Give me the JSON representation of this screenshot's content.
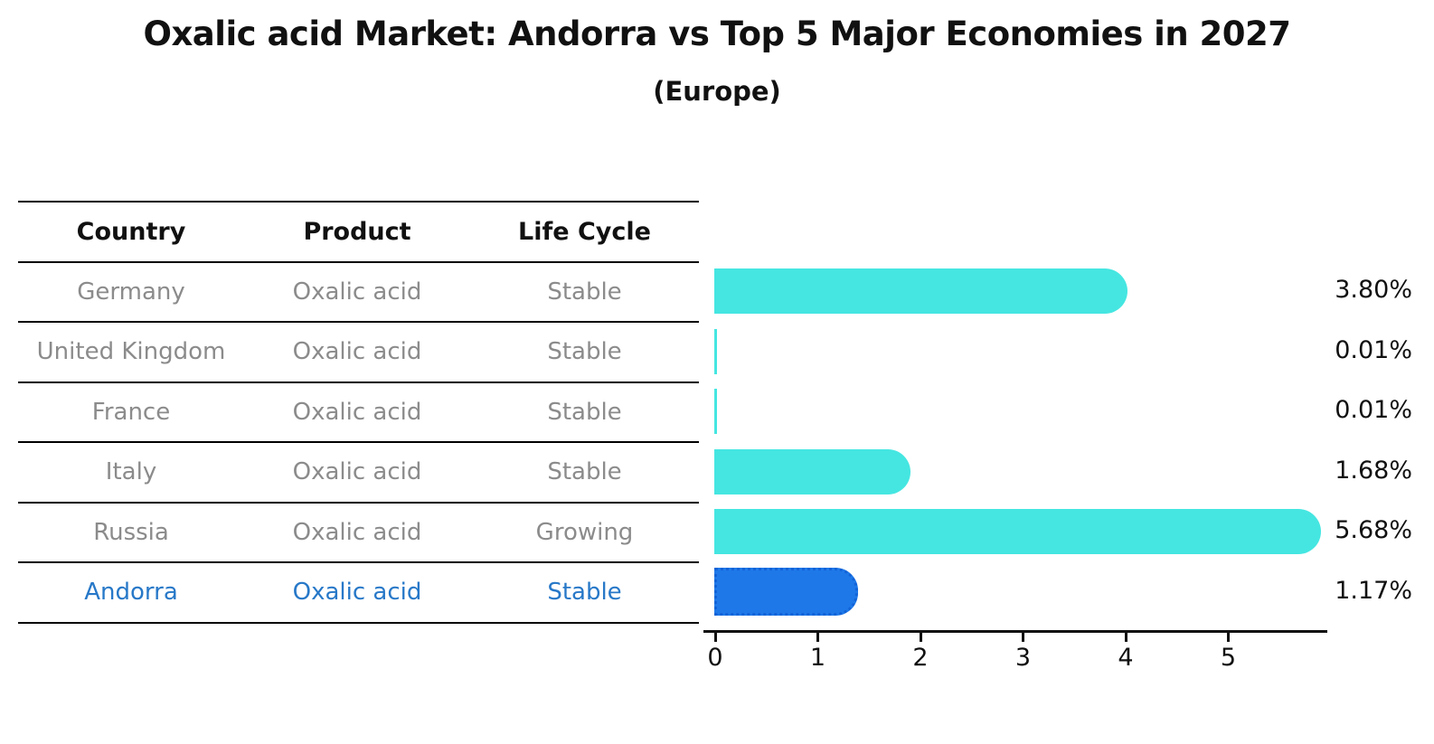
{
  "title": "Oxalic acid Market: Andorra vs Top 5 Major Economies in 2027",
  "subtitle": "(Europe)",
  "table": {
    "headers": [
      "Country",
      "Product",
      "Life Cycle"
    ],
    "rows": [
      {
        "country": "Germany",
        "product": "Oxalic acid",
        "life_cycle": "Stable",
        "highlight": false
      },
      {
        "country": "United Kingdom",
        "product": "Oxalic acid",
        "life_cycle": "Stable",
        "highlight": false
      },
      {
        "country": "France",
        "product": "Oxalic acid",
        "life_cycle": "Stable",
        "highlight": false
      },
      {
        "country": "Italy",
        "product": "Oxalic acid",
        "life_cycle": "Stable",
        "highlight": false
      },
      {
        "country": "Russia",
        "product": "Oxalic acid",
        "life_cycle": "Growing",
        "highlight": false
      },
      {
        "country": "Andorra",
        "product": "Oxalic acid",
        "life_cycle": "Stable",
        "highlight": true
      }
    ]
  },
  "chart_data": {
    "type": "bar",
    "orientation": "horizontal",
    "title": "Oxalic acid Market: Andorra vs Top 5 Major Economies in 2027",
    "subtitle": "(Europe)",
    "categories": [
      "Germany",
      "United Kingdom",
      "France",
      "Italy",
      "Russia",
      "Andorra"
    ],
    "values": [
      3.8,
      0.01,
      0.01,
      1.68,
      5.68,
      1.17
    ],
    "value_labels": [
      "3.80%",
      "0.01%",
      "0.01%",
      "1.68%",
      "5.68%",
      "1.17%"
    ],
    "x_ticks": [
      "0",
      "1",
      "2",
      "3",
      "4",
      "5"
    ],
    "xlim": [
      0,
      6
    ],
    "grid": false,
    "legend": "none",
    "highlight_category": "Andorra",
    "colors": {
      "bar_default": "#45E6E1",
      "bar_highlight": "#1E78E8",
      "bar_highlight_border": "#1263D8"
    }
  },
  "colors": {
    "text_primary": "#111111",
    "text_muted": "#8B8B8B",
    "text_highlight": "#2778C8",
    "rule": "#000000",
    "background": "#FFFFFF"
  }
}
